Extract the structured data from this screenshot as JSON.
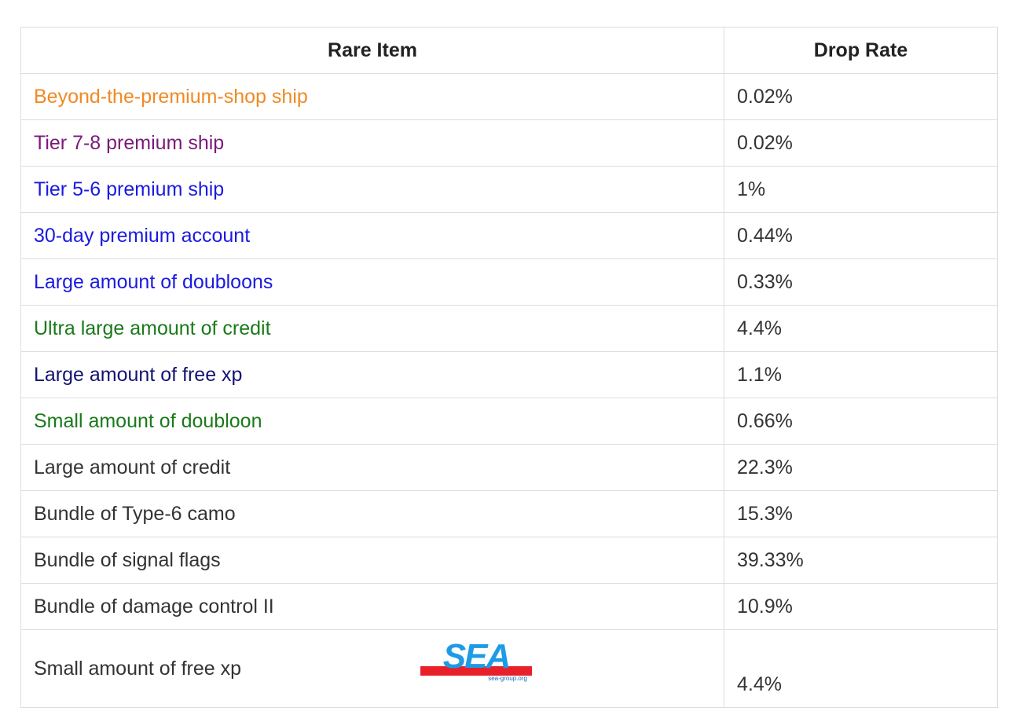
{
  "table": {
    "headers": [
      "Rare Item",
      "Drop Rate"
    ],
    "rows": [
      {
        "item": "Beyond-the-premium-shop ship",
        "rate": "0.02%",
        "color": "#f08a24"
      },
      {
        "item": "Tier 7-8 premium ship",
        "rate": "0.02%",
        "color": "#7a1a7a"
      },
      {
        "item": "Tier 5-6 premium ship",
        "rate": "1%",
        "color": "#1a1ae0"
      },
      {
        "item": "30-day premium account",
        "rate": "0.44%",
        "color": "#1a1ae0"
      },
      {
        "item": "Large amount of doubloons",
        "rate": "0.33%",
        "color": "#1a1ae0"
      },
      {
        "item": "Ultra large amount of credit",
        "rate": "4.4%",
        "color": "#1a7a1a"
      },
      {
        "item": "Large amount of free xp",
        "rate": "1.1%",
        "color": "#141470"
      },
      {
        "item": "Small amount of doubloon",
        "rate": "0.66%",
        "color": "#1a7a1a"
      },
      {
        "item": "Large amount of credit",
        "rate": "22.3%",
        "color": "#333333"
      },
      {
        "item": "Bundle of Type-6 camo",
        "rate": "15.3%",
        "color": "#333333"
      },
      {
        "item": "Bundle of signal flags",
        "rate": "39.33%",
        "color": "#333333"
      },
      {
        "item": "Bundle of damage control II",
        "rate": "10.9%",
        "color": "#333333"
      },
      {
        "item": "Small amount of free xp",
        "rate": "4.4%",
        "color": "#333333"
      }
    ]
  },
  "watermark": {
    "logo_text": "SEA",
    "logo_subtext": "sea-group.org",
    "colors": {
      "blue": "#1e9be6",
      "red": "#e8202a"
    }
  }
}
